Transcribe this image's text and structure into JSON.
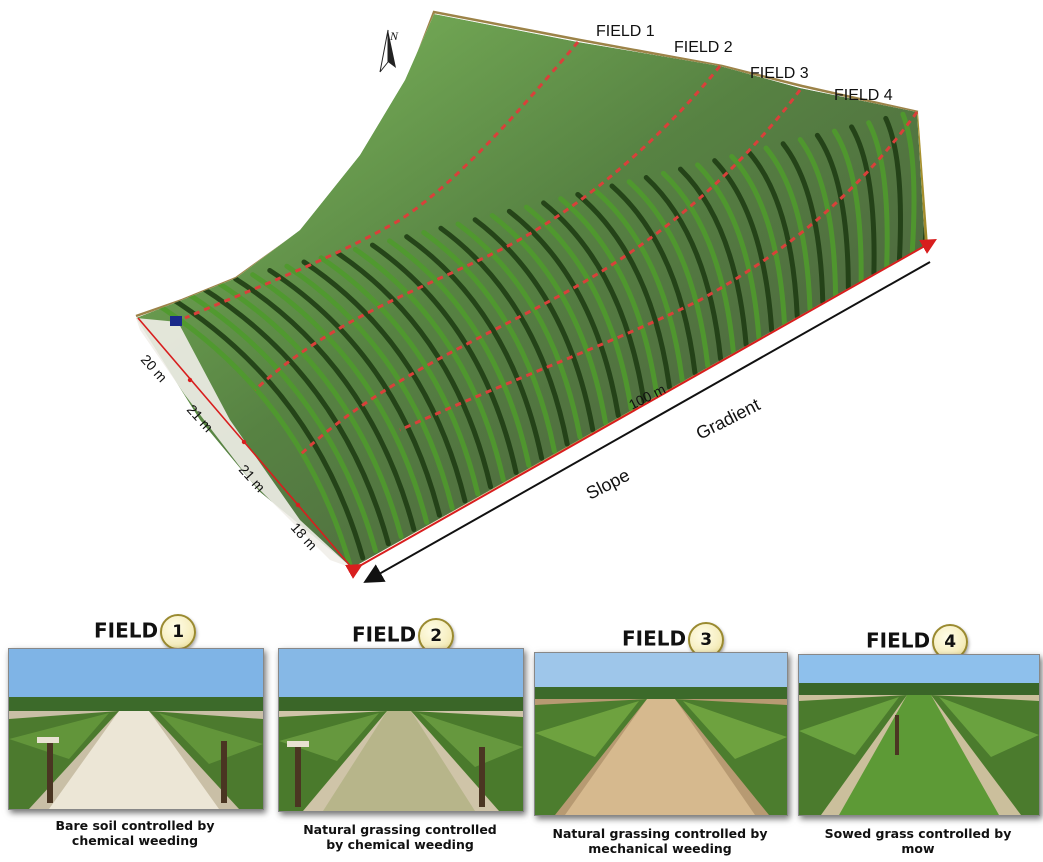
{
  "north_label": "N",
  "map_fields": [
    "FIELD 1",
    "FIELD 2",
    "FIELD 3",
    "FIELD 4"
  ],
  "distances": [
    "20 m",
    "21 m",
    "21 m",
    "18 m"
  ],
  "length_label": "100 m",
  "slope_words": [
    "Slope",
    "Gradient"
  ],
  "panels": [
    {
      "title": "FIELD",
      "number": "1",
      "caption_lines": [
        "Bare soil controlled by",
        "chemical weeding"
      ]
    },
    {
      "title": "FIELD",
      "number": "2",
      "caption_lines": [
        "Natural grassing controlled",
        "by chemical weeding"
      ]
    },
    {
      "title": "FIELD",
      "number": "3",
      "caption_lines": [
        "Natural grassing controlled by",
        "mechanical weeding"
      ]
    },
    {
      "title": "FIELD",
      "number": "4",
      "caption_lines": [
        "Sowed grass controlled by",
        "mow"
      ]
    }
  ],
  "colors": {
    "slope_face": "#a8912e",
    "vines": "#1f3d14",
    "foliage": "#4f9a2c",
    "field_border": "#d9403a"
  }
}
